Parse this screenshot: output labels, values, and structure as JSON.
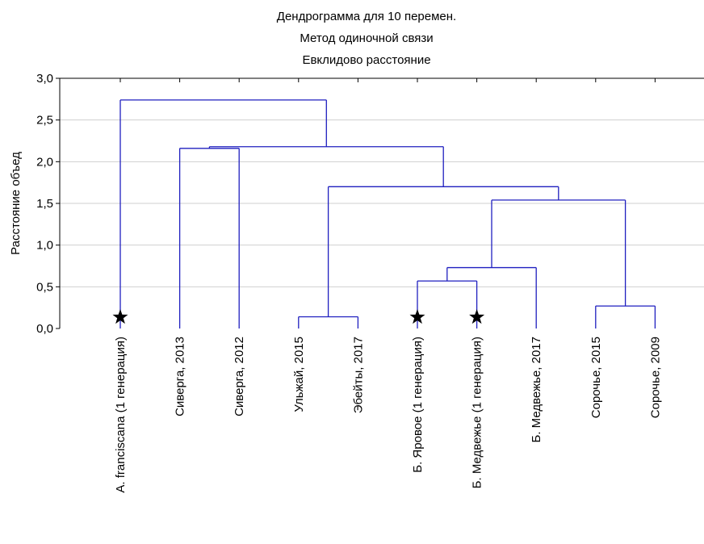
{
  "chart_data": {
    "type": "dendrogram",
    "title": [
      "Дендрограмма для 10 перемен.",
      "Метод одиночной связи",
      "Евклидово расстояние"
    ],
    "ylabel": "Расстояние объед",
    "xlabel": "",
    "ylim": [
      0,
      3.0
    ],
    "yticks": [
      0.0,
      0.5,
      1.0,
      1.5,
      2.0,
      2.5,
      3.0
    ],
    "ytick_labels": [
      "0,0",
      "0,5",
      "1,0",
      "1,5",
      "2,0",
      "2,5",
      "3,0"
    ],
    "grid": true,
    "line_color": "#1f1fbf",
    "marker": "star",
    "leaves": [
      {
        "label": "A. franciscana (1 генерация)",
        "marked": true
      },
      {
        "label": "Сиверга, 2013",
        "marked": false
      },
      {
        "label": "Сиверга, 2012",
        "marked": false
      },
      {
        "label": "Ульжай, 2015",
        "marked": false
      },
      {
        "label": "Эбейты, 2017",
        "marked": false
      },
      {
        "label": "Б. Яровое (1 генерация)",
        "marked": true
      },
      {
        "label": "Б. Медвежье (1 генерация)",
        "marked": true
      },
      {
        "label": "Б. Медвежье, 2017",
        "marked": false
      },
      {
        "label": "Сорочье, 2015",
        "marked": false
      },
      {
        "label": "Сорочье, 2009",
        "marked": false
      }
    ],
    "merges": [
      {
        "left": "L3",
        "right": "L4",
        "height": 0.14
      },
      {
        "left": "L8",
        "right": "L9",
        "height": 0.27
      },
      {
        "left": "L5",
        "right": "L6",
        "height": 0.57
      },
      {
        "left": "N2",
        "right": "L7",
        "height": 0.73
      },
      {
        "left": "N3",
        "right": "N1",
        "height": 1.54
      },
      {
        "left": "N0",
        "right": "N4",
        "height": 1.7
      },
      {
        "left": "L1",
        "right": "L2",
        "height": 2.16
      },
      {
        "left": "N6",
        "right": "N5",
        "height": 2.18
      },
      {
        "left": "L0",
        "right": "N7",
        "height": 2.74
      }
    ]
  }
}
